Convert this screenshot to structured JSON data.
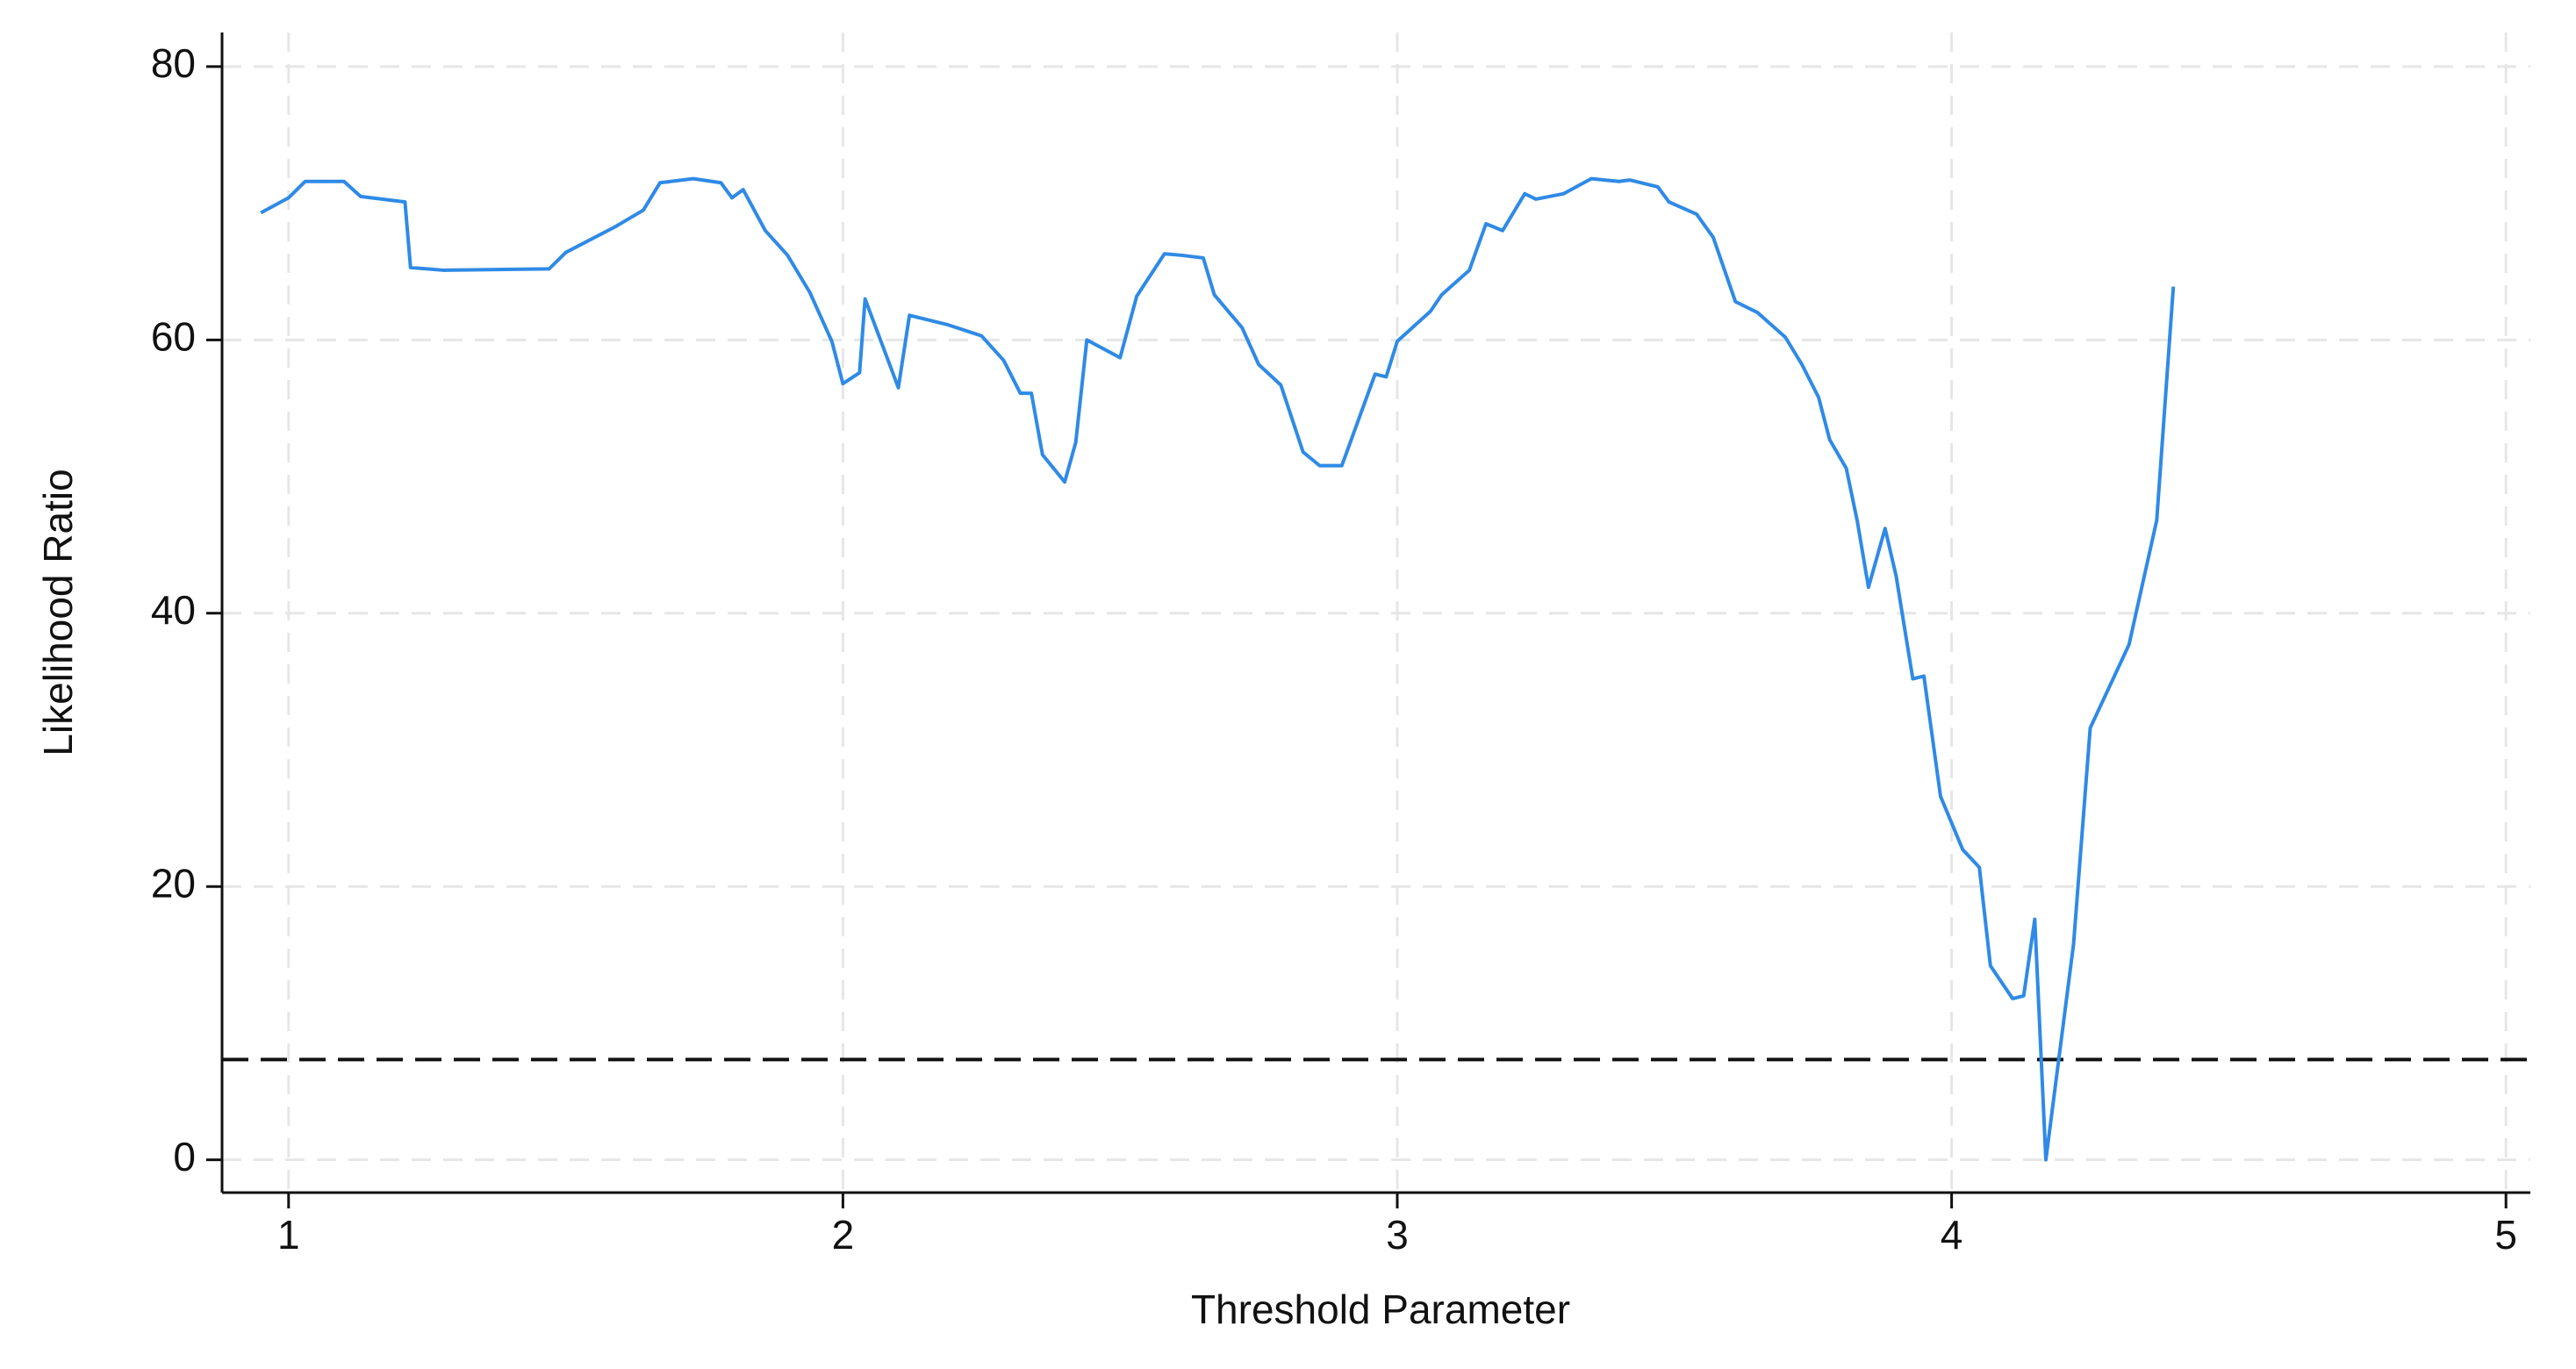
{
  "chart_data": {
    "type": "line",
    "x_label": "Threshold Parameter",
    "y_label": "Likelihood Ratio",
    "xlim": [
      0.88,
      5.044
    ],
    "ylim": [
      -2.4,
      82.5
    ],
    "xticks": [
      1,
      2,
      3,
      4,
      5
    ],
    "yticks": [
      0,
      20,
      40,
      60,
      80
    ],
    "grid": true,
    "hline": 7.34,
    "hline_color": "#111111",
    "series": [
      {
        "color": "#2f8ae6",
        "x": [
          0.95,
          1.0,
          1.03,
          1.1,
          1.13,
          1.21,
          1.22,
          1.28,
          1.47,
          1.5,
          1.59,
          1.64,
          1.67,
          1.73,
          1.78,
          1.8,
          1.82,
          1.86,
          1.9,
          1.94,
          1.98,
          2.0,
          2.03,
          2.04,
          2.1,
          2.12,
          2.19,
          2.25,
          2.29,
          2.32,
          2.34,
          2.36,
          2.4,
          2.42,
          2.44,
          2.5,
          2.53,
          2.58,
          2.61,
          2.65,
          2.67,
          2.72,
          2.75,
          2.79,
          2.83,
          2.86,
          2.9,
          2.96,
          2.98,
          3.0,
          3.06,
          3.08,
          3.13,
          3.16,
          3.19,
          3.23,
          3.25,
          3.3,
          3.35,
          3.4,
          3.42,
          3.47,
          3.49,
          3.54,
          3.57,
          3.61,
          3.65,
          3.7,
          3.73,
          3.76,
          3.78,
          3.81,
          3.83,
          3.85,
          3.88,
          3.9,
          3.93,
          3.95,
          3.98,
          4.02,
          4.05,
          4.07,
          4.11,
          4.13,
          4.15,
          4.17,
          4.22,
          4.25,
          4.32,
          4.37,
          4.4
        ],
        "values": [
          69.3,
          70.4,
          71.6,
          71.6,
          70.5,
          70.1,
          65.3,
          65.1,
          65.2,
          66.4,
          68.3,
          69.5,
          71.5,
          71.8,
          71.5,
          70.4,
          71.0,
          68.0,
          66.2,
          63.5,
          59.9,
          56.8,
          57.6,
          63.0,
          56.5,
          61.8,
          61.1,
          60.3,
          58.5,
          56.1,
          56.1,
          51.6,
          49.6,
          52.5,
          60.0,
          58.7,
          63.2,
          66.3,
          66.2,
          66.0,
          63.3,
          60.9,
          58.2,
          56.7,
          51.8,
          50.8,
          50.8,
          57.5,
          57.3,
          59.9,
          62.1,
          63.3,
          65.1,
          68.5,
          68.0,
          70.7,
          70.3,
          70.7,
          71.8,
          71.6,
          71.7,
          71.2,
          70.1,
          69.2,
          67.5,
          62.8,
          62.0,
          60.2,
          58.2,
          55.8,
          52.7,
          50.6,
          46.7,
          41.9,
          46.2,
          42.7,
          35.2,
          35.4,
          26.6,
          22.7,
          21.4,
          14.2,
          11.8,
          12.0,
          17.6,
          0,
          15.8,
          31.6,
          37.7,
          46.8,
          63.9
        ]
      }
    ]
  }
}
